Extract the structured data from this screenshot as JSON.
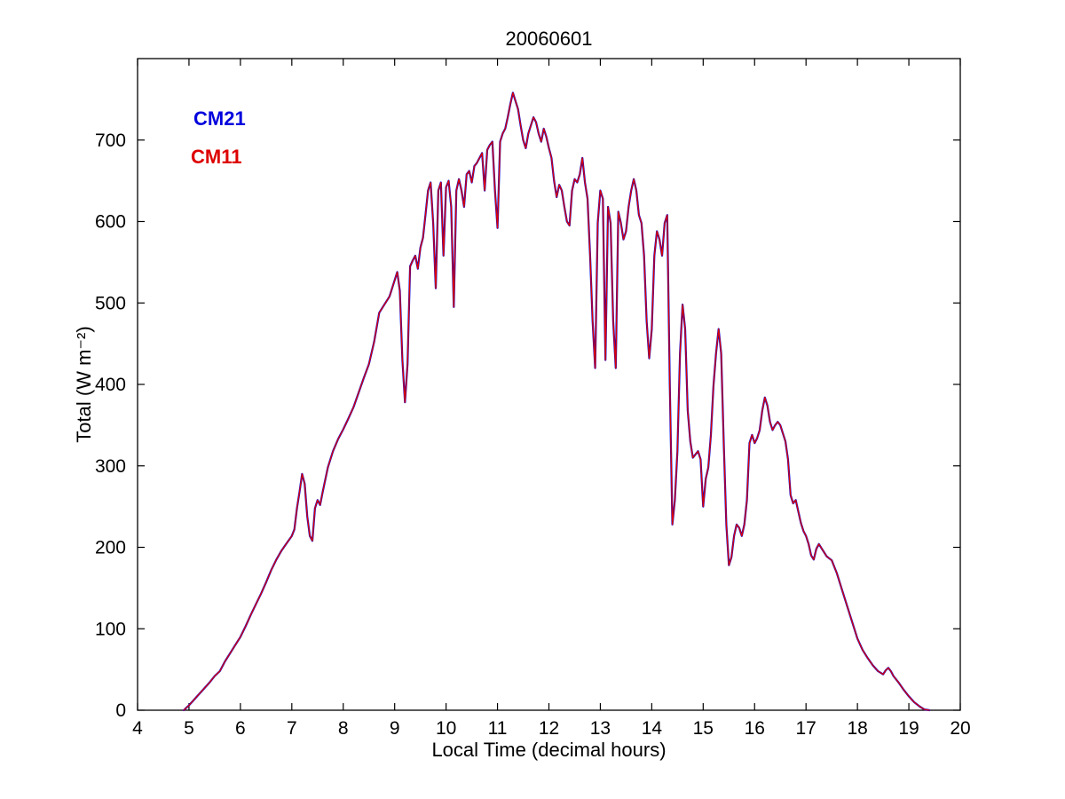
{
  "chart_data": {
    "type": "line",
    "title": "20060601",
    "xlabel": "Local Time (decimal hours)",
    "ylabel": "Total (W m⁻²)",
    "xlim": [
      4,
      20
    ],
    "ylim": [
      0,
      800
    ],
    "xticks": [
      4,
      5,
      6,
      7,
      8,
      9,
      10,
      11,
      12,
      13,
      14,
      15,
      16,
      17,
      18,
      19,
      20
    ],
    "yticks": [
      0,
      100,
      200,
      300,
      400,
      500,
      600,
      700
    ],
    "grid": false,
    "legend_position": "upper-left-text",
    "axis_color": "#000000",
    "x": [
      4.9,
      4.95,
      5.0,
      5.1,
      5.2,
      5.3,
      5.4,
      5.5,
      5.6,
      5.7,
      5.8,
      5.9,
      6.0,
      6.1,
      6.2,
      6.3,
      6.4,
      6.5,
      6.6,
      6.7,
      6.8,
      6.9,
      7.0,
      7.05,
      7.1,
      7.15,
      7.2,
      7.25,
      7.3,
      7.35,
      7.4,
      7.45,
      7.5,
      7.55,
      7.6,
      7.7,
      7.8,
      7.9,
      8.0,
      8.1,
      8.2,
      8.3,
      8.4,
      8.5,
      8.6,
      8.7,
      8.8,
      8.9,
      9.0,
      9.05,
      9.1,
      9.15,
      9.2,
      9.25,
      9.3,
      9.35,
      9.4,
      9.45,
      9.5,
      9.55,
      9.6,
      9.65,
      9.7,
      9.75,
      9.8,
      9.85,
      9.9,
      9.95,
      10.0,
      10.05,
      10.1,
      10.15,
      10.2,
      10.25,
      10.3,
      10.35,
      10.4,
      10.45,
      10.5,
      10.55,
      10.6,
      10.65,
      10.7,
      10.75,
      10.8,
      10.85,
      10.9,
      10.95,
      11.0,
      11.05,
      11.1,
      11.15,
      11.2,
      11.25,
      11.3,
      11.35,
      11.4,
      11.45,
      11.5,
      11.55,
      11.6,
      11.65,
      11.7,
      11.75,
      11.8,
      11.85,
      11.9,
      11.95,
      12.0,
      12.05,
      12.1,
      12.15,
      12.2,
      12.25,
      12.3,
      12.35,
      12.4,
      12.45,
      12.5,
      12.55,
      12.6,
      12.65,
      12.7,
      12.75,
      12.8,
      12.85,
      12.9,
      12.95,
      13.0,
      13.05,
      13.1,
      13.15,
      13.2,
      13.25,
      13.3,
      13.35,
      13.4,
      13.45,
      13.5,
      13.55,
      13.6,
      13.65,
      13.7,
      13.75,
      13.8,
      13.85,
      13.9,
      13.95,
      14.0,
      14.05,
      14.1,
      14.15,
      14.2,
      14.25,
      14.3,
      14.35,
      14.4,
      14.45,
      14.5,
      14.55,
      14.6,
      14.65,
      14.7,
      14.75,
      14.8,
      14.85,
      14.9,
      14.95,
      15.0,
      15.05,
      15.1,
      15.15,
      15.2,
      15.25,
      15.3,
      15.35,
      15.4,
      15.45,
      15.5,
      15.55,
      15.6,
      15.65,
      15.7,
      15.75,
      15.8,
      15.85,
      15.9,
      15.95,
      16.0,
      16.05,
      16.1,
      16.15,
      16.2,
      16.25,
      16.3,
      16.35,
      16.4,
      16.45,
      16.5,
      16.55,
      16.6,
      16.65,
      16.7,
      16.75,
      16.8,
      16.85,
      16.9,
      16.95,
      17.0,
      17.05,
      17.1,
      17.15,
      17.2,
      17.25,
      17.3,
      17.35,
      17.4,
      17.5,
      17.6,
      17.7,
      17.8,
      17.9,
      18.0,
      18.1,
      18.2,
      18.3,
      18.4,
      18.5,
      18.55,
      18.6,
      18.65,
      18.7,
      18.8,
      18.9,
      19.0,
      19.1,
      19.2,
      19.3,
      19.4
    ],
    "series": [
      {
        "name": "CM21",
        "color": "#0000dd",
        "values": [
          0,
          3,
          6,
          13,
          20,
          27,
          34,
          42,
          48,
          60,
          70,
          80,
          90,
          103,
          117,
          130,
          143,
          157,
          172,
          185,
          196,
          205,
          214,
          222,
          248,
          268,
          290,
          278,
          238,
          214,
          208,
          248,
          258,
          252,
          268,
          298,
          318,
          333,
          345,
          358,
          372,
          390,
          408,
          425,
          452,
          488,
          498,
          508,
          528,
          538,
          515,
          430,
          378,
          425,
          545,
          552,
          558,
          542,
          568,
          580,
          608,
          638,
          648,
          598,
          518,
          638,
          648,
          558,
          642,
          650,
          618,
          495,
          638,
          652,
          638,
          618,
          658,
          662,
          648,
          668,
          672,
          678,
          684,
          638,
          688,
          694,
          698,
          638,
          592,
          698,
          708,
          714,
          728,
          744,
          758,
          748,
          738,
          718,
          700,
          690,
          708,
          718,
          728,
          722,
          708,
          698,
          714,
          704,
          690,
          678,
          650,
          630,
          645,
          638,
          618,
          600,
          595,
          638,
          652,
          648,
          658,
          678,
          648,
          628,
          558,
          478,
          420,
          598,
          638,
          628,
          430,
          618,
          598,
          478,
          420,
          612,
          598,
          578,
          588,
          618,
          638,
          652,
          638,
          608,
          598,
          558,
          478,
          432,
          468,
          558,
          588,
          578,
          558,
          598,
          608,
          400,
          228,
          258,
          318,
          438,
          498,
          468,
          368,
          330,
          310,
          314,
          318,
          308,
          250,
          284,
          298,
          338,
          398,
          438,
          468,
          438,
          328,
          228,
          178,
          188,
          214,
          228,
          224,
          214,
          228,
          258,
          328,
          338,
          328,
          334,
          344,
          368,
          384,
          374,
          354,
          344,
          350,
          354,
          350,
          340,
          330,
          308,
          264,
          254,
          258,
          244,
          230,
          220,
          214,
          204,
          190,
          185,
          198,
          204,
          199,
          194,
          189,
          184,
          168,
          148,
          128,
          108,
          88,
          74,
          64,
          55,
          48,
          44,
          49,
          52,
          48,
          42,
          34,
          25,
          17,
          10,
          5,
          1,
          0
        ]
      },
      {
        "name": "CM11",
        "color": "#dd0000",
        "values": [
          0,
          3,
          6,
          13,
          20,
          27,
          34,
          42,
          48,
          60,
          70,
          80,
          90,
          103,
          117,
          130,
          143,
          157,
          172,
          185,
          196,
          205,
          214,
          222,
          248,
          268,
          290,
          278,
          238,
          214,
          208,
          248,
          258,
          252,
          268,
          298,
          318,
          333,
          345,
          358,
          372,
          390,
          408,
          425,
          452,
          488,
          498,
          508,
          528,
          538,
          515,
          430,
          378,
          425,
          545,
          552,
          558,
          542,
          568,
          580,
          608,
          638,
          648,
          598,
          518,
          638,
          648,
          558,
          642,
          650,
          618,
          495,
          638,
          652,
          638,
          618,
          658,
          662,
          648,
          668,
          672,
          678,
          684,
          638,
          688,
          694,
          698,
          638,
          592,
          698,
          708,
          714,
          728,
          744,
          758,
          748,
          738,
          718,
          700,
          690,
          708,
          718,
          728,
          722,
          708,
          698,
          714,
          704,
          690,
          678,
          650,
          630,
          645,
          638,
          618,
          600,
          595,
          638,
          652,
          648,
          658,
          678,
          648,
          628,
          558,
          478,
          420,
          598,
          638,
          628,
          430,
          618,
          598,
          478,
          420,
          612,
          598,
          578,
          588,
          618,
          638,
          652,
          638,
          608,
          598,
          558,
          478,
          432,
          468,
          558,
          588,
          578,
          558,
          598,
          608,
          400,
          228,
          258,
          318,
          438,
          498,
          468,
          368,
          330,
          310,
          314,
          318,
          308,
          250,
          284,
          298,
          338,
          398,
          438,
          468,
          438,
          328,
          228,
          178,
          188,
          214,
          228,
          224,
          214,
          228,
          258,
          328,
          338,
          328,
          334,
          344,
          368,
          384,
          374,
          354,
          344,
          350,
          354,
          350,
          340,
          330,
          308,
          264,
          254,
          258,
          244,
          230,
          220,
          214,
          204,
          190,
          185,
          198,
          204,
          199,
          194,
          189,
          184,
          168,
          148,
          128,
          108,
          88,
          74,
          64,
          55,
          48,
          44,
          49,
          52,
          48,
          42,
          34,
          25,
          17,
          10,
          5,
          1,
          0
        ]
      }
    ]
  }
}
